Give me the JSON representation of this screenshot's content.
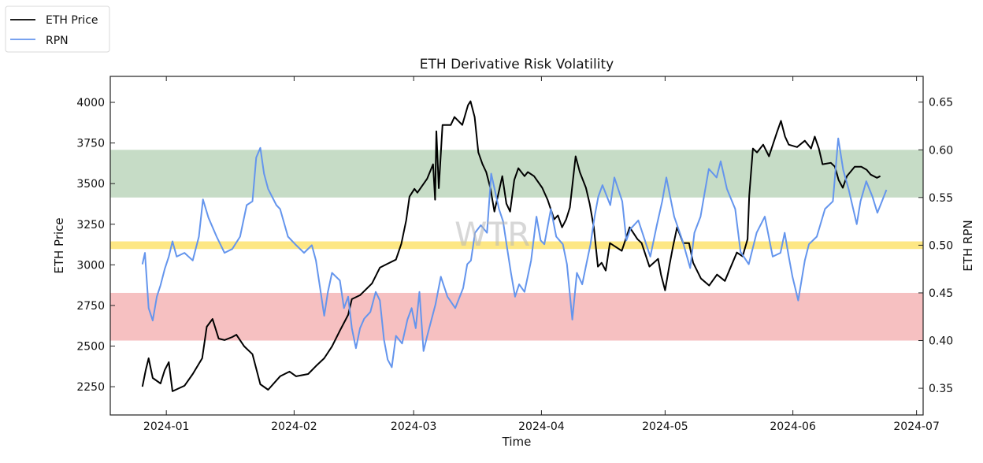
{
  "chart_data": {
    "type": "line",
    "title": "ETH Derivative Risk Volatility",
    "xlabel": "Time",
    "ylabel_left": "ETH Price",
    "ylabel_right": "ETH RPN",
    "watermark": "WTR",
    "x_epoch": "2024-01-01",
    "x_unit": "days since 2024-01-01",
    "xlim": [
      -13.6,
      183.6
    ],
    "ylim_left": [
      2076,
      4160
    ],
    "ylim_right": [
      0.322,
      0.677
    ],
    "x_ticks": [
      {
        "label": "2024-01",
        "value": 0
      },
      {
        "label": "2024-02",
        "value": 31
      },
      {
        "label": "2024-03",
        "value": 60
      },
      {
        "label": "2024-04",
        "value": 91
      },
      {
        "label": "2024-05",
        "value": 121
      },
      {
        "label": "2024-06",
        "value": 152
      },
      {
        "label": "2024-07",
        "value": 182
      }
    ],
    "y_ticks_left": [
      {
        "label": "2250",
        "value": 2250
      },
      {
        "label": "2500",
        "value": 2500
      },
      {
        "label": "2750",
        "value": 2750
      },
      {
        "label": "3000",
        "value": 3000
      },
      {
        "label": "3250",
        "value": 3250
      },
      {
        "label": "3500",
        "value": 3500
      },
      {
        "label": "3750",
        "value": 3750
      },
      {
        "label": "4000",
        "value": 4000
      }
    ],
    "y_ticks_right": [
      {
        "label": "0.35",
        "value": 0.35
      },
      {
        "label": "0.40",
        "value": 0.4
      },
      {
        "label": "0.45",
        "value": 0.45
      },
      {
        "label": "0.50",
        "value": 0.5
      },
      {
        "label": "0.55",
        "value": 0.55
      },
      {
        "label": "0.60",
        "value": 0.6
      },
      {
        "label": "0.65",
        "value": 0.65
      }
    ],
    "bands": [
      {
        "name": "green-zone",
        "axis": "right",
        "from": 0.55,
        "to": 0.6,
        "color": "#c6dcc6"
      },
      {
        "name": "neutral-line",
        "axis": "right",
        "from": 0.496,
        "to": 0.504,
        "color": "#fde784"
      },
      {
        "name": "red-zone",
        "axis": "right",
        "from": 0.4,
        "to": 0.45,
        "color": "#f6c0c1"
      }
    ],
    "legend": {
      "placement": "top-left",
      "entries": [
        {
          "label": "ETH Price",
          "color": "#000000"
        },
        {
          "label": "RPN",
          "color": "#6495ed"
        }
      ]
    },
    "series": [
      {
        "name": "ETH Price",
        "axis": "left",
        "color": "#000000",
        "points": [
          [
            -5.8,
            2250
          ],
          [
            -5.0,
            2352
          ],
          [
            -4.3,
            2425
          ],
          [
            -3.3,
            2304
          ],
          [
            -1.4,
            2270
          ],
          [
            -0.4,
            2352
          ],
          [
            0.6,
            2401
          ],
          [
            1.5,
            2222
          ],
          [
            4.4,
            2256
          ],
          [
            6.4,
            2328
          ],
          [
            8.7,
            2425
          ],
          [
            9.8,
            2619
          ],
          [
            11.2,
            2667
          ],
          [
            12.7,
            2546
          ],
          [
            14.1,
            2537
          ],
          [
            16.0,
            2556
          ],
          [
            17.0,
            2570
          ],
          [
            18.9,
            2498
          ],
          [
            20.9,
            2450
          ],
          [
            22.8,
            2265
          ],
          [
            24.7,
            2231
          ],
          [
            27.6,
            2314
          ],
          [
            29.9,
            2343
          ],
          [
            31.5,
            2314
          ],
          [
            34.4,
            2328
          ],
          [
            36.3,
            2377
          ],
          [
            38.3,
            2425
          ],
          [
            40.2,
            2498
          ],
          [
            42.1,
            2595
          ],
          [
            44.1,
            2692
          ],
          [
            45.0,
            2789
          ],
          [
            47.0,
            2813
          ],
          [
            49.9,
            2886
          ],
          [
            51.8,
            2983
          ],
          [
            53.7,
            3007
          ],
          [
            55.7,
            3032
          ],
          [
            57.0,
            3129
          ],
          [
            58.2,
            3274
          ],
          [
            59.0,
            3420
          ],
          [
            60.2,
            3468
          ],
          [
            60.9,
            3444
          ],
          [
            63.3,
            3531
          ],
          [
            64.7,
            3619
          ],
          [
            65.2,
            3401
          ],
          [
            65.5,
            3822
          ],
          [
            66.1,
            3472
          ],
          [
            67.0,
            3861
          ],
          [
            69.0,
            3861
          ],
          [
            69.9,
            3910
          ],
          [
            71.8,
            3861
          ],
          [
            73.2,
            3983
          ],
          [
            73.8,
            4007
          ],
          [
            74.8,
            3910
          ],
          [
            75.7,
            3692
          ],
          [
            76.7,
            3619
          ],
          [
            77.6,
            3571
          ],
          [
            78.6,
            3474
          ],
          [
            79.6,
            3328
          ],
          [
            81.5,
            3546
          ],
          [
            82.5,
            3377
          ],
          [
            83.4,
            3328
          ],
          [
            84.4,
            3522
          ],
          [
            85.4,
            3595
          ],
          [
            86.9,
            3546
          ],
          [
            87.7,
            3571
          ],
          [
            89.2,
            3546
          ],
          [
            91.2,
            3474
          ],
          [
            92.5,
            3401
          ],
          [
            94.1,
            3280
          ],
          [
            95.0,
            3304
          ],
          [
            96.0,
            3231
          ],
          [
            97.0,
            3280
          ],
          [
            97.9,
            3353
          ],
          [
            99.3,
            3668
          ],
          [
            100.3,
            3571
          ],
          [
            101.8,
            3474
          ],
          [
            102.7,
            3377
          ],
          [
            103.7,
            3231
          ],
          [
            104.7,
            2989
          ],
          [
            105.6,
            3013
          ],
          [
            106.6,
            2965
          ],
          [
            107.6,
            3134
          ],
          [
            110.5,
            3086
          ],
          [
            112.4,
            3231
          ],
          [
            114.3,
            3158
          ],
          [
            115.3,
            3134
          ],
          [
            117.2,
            2989
          ],
          [
            119.3,
            3037
          ],
          [
            120.0,
            2940
          ],
          [
            121.0,
            2843
          ],
          [
            122.0,
            2989
          ],
          [
            122.9,
            3110
          ],
          [
            123.9,
            3231
          ],
          [
            125.4,
            3134
          ],
          [
            126.8,
            3134
          ],
          [
            127.8,
            3013
          ],
          [
            129.7,
            2916
          ],
          [
            131.7,
            2873
          ],
          [
            133.6,
            2940
          ],
          [
            135.5,
            2901
          ],
          [
            138.4,
            3076
          ],
          [
            139.8,
            3052
          ],
          [
            141.0,
            3158
          ],
          [
            141.4,
            3425
          ],
          [
            142.3,
            3716
          ],
          [
            143.3,
            3692
          ],
          [
            144.8,
            3740
          ],
          [
            146.2,
            3668
          ],
          [
            148.1,
            3813
          ],
          [
            149.1,
            3886
          ],
          [
            150.1,
            3789
          ],
          [
            151.0,
            3740
          ],
          [
            153.0,
            3725
          ],
          [
            154.9,
            3764
          ],
          [
            156.4,
            3716
          ],
          [
            157.3,
            3789
          ],
          [
            158.3,
            3716
          ],
          [
            159.2,
            3619
          ],
          [
            161.2,
            3628
          ],
          [
            162.2,
            3604
          ],
          [
            163.1,
            3522
          ],
          [
            164.1,
            3474
          ],
          [
            165.1,
            3546
          ],
          [
            167.0,
            3604
          ],
          [
            168.6,
            3604
          ],
          [
            169.9,
            3585
          ],
          [
            170.9,
            3555
          ],
          [
            172.4,
            3536
          ],
          [
            173.2,
            3546
          ]
        ]
      },
      {
        "name": "RPN",
        "axis": "right",
        "color": "#6495ed",
        "points": [
          [
            -5.8,
            0.48
          ],
          [
            -5.2,
            0.492
          ],
          [
            -4.3,
            0.434
          ],
          [
            -3.3,
            0.421
          ],
          [
            -2.3,
            0.446
          ],
          [
            -1.4,
            0.458
          ],
          [
            -0.4,
            0.475
          ],
          [
            0.6,
            0.488
          ],
          [
            1.5,
            0.504
          ],
          [
            2.5,
            0.488
          ],
          [
            4.4,
            0.492
          ],
          [
            6.4,
            0.484
          ],
          [
            7.9,
            0.509
          ],
          [
            8.9,
            0.548
          ],
          [
            10.2,
            0.529
          ],
          [
            12.2,
            0.509
          ],
          [
            14.1,
            0.492
          ],
          [
            16.0,
            0.496
          ],
          [
            17.9,
            0.509
          ],
          [
            19.5,
            0.542
          ],
          [
            20.9,
            0.546
          ],
          [
            21.8,
            0.592
          ],
          [
            22.8,
            0.602
          ],
          [
            23.7,
            0.575
          ],
          [
            24.7,
            0.559
          ],
          [
            26.7,
            0.542
          ],
          [
            27.6,
            0.538
          ],
          [
            29.5,
            0.509
          ],
          [
            31.5,
            0.5
          ],
          [
            33.4,
            0.492
          ],
          [
            35.3,
            0.5
          ],
          [
            36.3,
            0.484
          ],
          [
            37.3,
            0.455
          ],
          [
            38.3,
            0.426
          ],
          [
            39.2,
            0.451
          ],
          [
            40.2,
            0.471
          ],
          [
            42.1,
            0.463
          ],
          [
            43.1,
            0.434
          ],
          [
            44.1,
            0.446
          ],
          [
            45.0,
            0.413
          ],
          [
            46.0,
            0.392
          ],
          [
            47.0,
            0.413
          ],
          [
            48.0,
            0.423
          ],
          [
            49.5,
            0.43
          ],
          [
            50.8,
            0.451
          ],
          [
            51.8,
            0.442
          ],
          [
            52.8,
            0.401
          ],
          [
            53.7,
            0.38
          ],
          [
            54.7,
            0.372
          ],
          [
            55.7,
            0.405
          ],
          [
            57.2,
            0.397
          ],
          [
            58.5,
            0.422
          ],
          [
            59.5,
            0.434
          ],
          [
            60.5,
            0.413
          ],
          [
            61.4,
            0.451
          ],
          [
            62.4,
            0.389
          ],
          [
            63.3,
            0.405
          ],
          [
            65.3,
            0.438
          ],
          [
            66.6,
            0.467
          ],
          [
            68.2,
            0.446
          ],
          [
            70.1,
            0.434
          ],
          [
            72.0,
            0.455
          ],
          [
            73.0,
            0.48
          ],
          [
            73.9,
            0.484
          ],
          [
            74.9,
            0.513
          ],
          [
            76.3,
            0.521
          ],
          [
            77.8,
            0.513
          ],
          [
            78.8,
            0.575
          ],
          [
            80.7,
            0.538
          ],
          [
            81.7,
            0.525
          ],
          [
            82.7,
            0.496
          ],
          [
            83.6,
            0.471
          ],
          [
            84.6,
            0.446
          ],
          [
            85.6,
            0.459
          ],
          [
            86.9,
            0.451
          ],
          [
            88.5,
            0.484
          ],
          [
            89.8,
            0.53
          ],
          [
            90.8,
            0.505
          ],
          [
            91.7,
            0.501
          ],
          [
            93.3,
            0.538
          ],
          [
            94.6,
            0.509
          ],
          [
            96.2,
            0.501
          ],
          [
            97.2,
            0.48
          ],
          [
            98.5,
            0.422
          ],
          [
            99.6,
            0.471
          ],
          [
            100.9,
            0.459
          ],
          [
            101.9,
            0.48
          ],
          [
            102.9,
            0.501
          ],
          [
            103.9,
            0.53
          ],
          [
            104.8,
            0.551
          ],
          [
            105.8,
            0.563
          ],
          [
            107.7,
            0.542
          ],
          [
            108.7,
            0.571
          ],
          [
            110.6,
            0.546
          ],
          [
            111.6,
            0.505
          ],
          [
            112.6,
            0.517
          ],
          [
            114.5,
            0.526
          ],
          [
            117.4,
            0.488
          ],
          [
            119.0,
            0.521
          ],
          [
            120.3,
            0.546
          ],
          [
            121.3,
            0.571
          ],
          [
            123.2,
            0.53
          ],
          [
            125.2,
            0.505
          ],
          [
            127.1,
            0.476
          ],
          [
            128.1,
            0.513
          ],
          [
            129.6,
            0.53
          ],
          [
            130.6,
            0.555
          ],
          [
            131.6,
            0.58
          ],
          [
            133.5,
            0.571
          ],
          [
            134.5,
            0.588
          ],
          [
            136.0,
            0.559
          ],
          [
            138.0,
            0.538
          ],
          [
            139.3,
            0.493
          ],
          [
            141.3,
            0.48
          ],
          [
            143.2,
            0.513
          ],
          [
            145.2,
            0.53
          ],
          [
            147.1,
            0.488
          ],
          [
            149.0,
            0.492
          ],
          [
            150.0,
            0.513
          ],
          [
            151.0,
            0.488
          ],
          [
            151.9,
            0.467
          ],
          [
            153.3,
            0.442
          ],
          [
            154.9,
            0.484
          ],
          [
            155.9,
            0.501
          ],
          [
            157.8,
            0.509
          ],
          [
            159.8,
            0.538
          ],
          [
            161.7,
            0.546
          ],
          [
            163.0,
            0.612
          ],
          [
            164.2,
            0.579
          ],
          [
            165.5,
            0.559
          ],
          [
            167.5,
            0.522
          ],
          [
            168.4,
            0.546
          ],
          [
            169.8,
            0.567
          ],
          [
            171.3,
            0.551
          ],
          [
            172.5,
            0.534
          ],
          [
            173.6,
            0.546
          ],
          [
            174.7,
            0.558
          ]
        ]
      }
    ]
  }
}
